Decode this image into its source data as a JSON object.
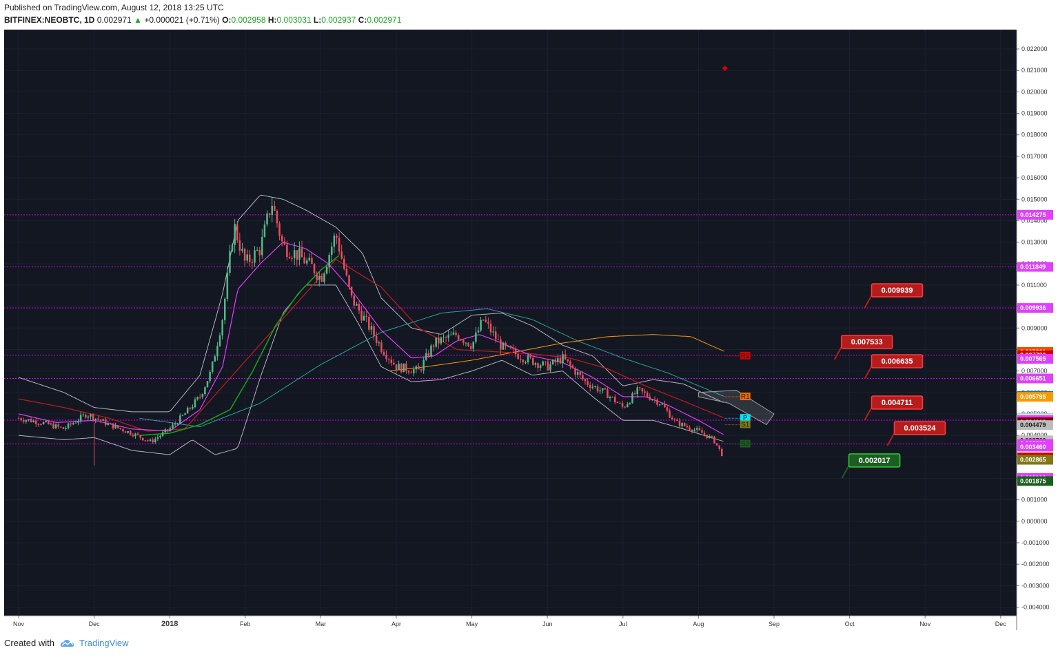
{
  "header": {
    "published": "Published on TradingView.com, August 12, 2018 13:25 UTC",
    "symbol": "BITFINEX:NEOBTC, 1D",
    "last": "0.002971",
    "change": "+0.000021 (+0.71%)",
    "o_label": "O:",
    "o_value": "0.002958",
    "h_label": "H:",
    "h_value": "0.003031",
    "l_label": "L:",
    "l_value": "0.002937",
    "c_label": "C:",
    "c_value": "0.002971"
  },
  "footer": {
    "created_with": "Created with",
    "brand": "TradingView"
  },
  "colors": {
    "background": "#131722",
    "up": "#53b987",
    "down": "#eb4d5c",
    "bollinger": "#b2b5be",
    "ma_fast": "#e040fb",
    "ma_green": "#1b9e1b",
    "ma_red": "#b71c1c",
    "ma_teal": "#26a69a",
    "ma_orange": "#ff9800",
    "level_line": "#d500f9"
  },
  "chart_data": {
    "type": "candlestick",
    "symbol": "BITFINEX:NEOBTC",
    "interval": "1D",
    "x_ticks": [
      "Nov",
      "Dec",
      "2018",
      "Feb",
      "Mar",
      "Apr",
      "May",
      "Jun",
      "Jul",
      "Aug",
      "Sep",
      "Oct",
      "Nov",
      "Dec"
    ],
    "y_ticks": [
      "0.022000",
      "0.021000",
      "0.020000",
      "0.019000",
      "0.018000",
      "0.017000",
      "0.016000",
      "0.015000",
      "0.014000",
      "0.013000",
      "0.012000",
      "0.011000",
      "0.010000",
      "0.009000",
      "0.008000",
      "0.007000",
      "0.006000",
      "0.005000",
      "0.004000",
      "0.003000",
      "0.002000",
      "0.001000",
      "0.000000",
      "-0.001000",
      "-0.002000",
      "-0.003000",
      "-0.004000"
    ],
    "ylim": [
      -0.0044,
      0.0229
    ],
    "horizontal_levels": [
      0.014275,
      0.011849,
      0.009936,
      0.007736,
      0.006651,
      0.004711,
      0.003601
    ],
    "price_tags": [
      {
        "value": 0.014275,
        "label": "0.014275",
        "color": "#e040fb"
      },
      {
        "value": 0.011849,
        "label": "0.011849",
        "color": "#e040fb"
      },
      {
        "value": 0.009936,
        "label": "0.009936",
        "color": "#e040fb"
      },
      {
        "value": 0.007891,
        "label": "0.007891",
        "color": "#e65100"
      },
      {
        "value": 0.007736,
        "label": "0.007736",
        "color": "#d50000"
      },
      {
        "value": 0.007565,
        "label": "0.007565",
        "color": "#e040fb"
      },
      {
        "value": 0.006651,
        "label": "0.006651",
        "color": "#e040fb"
      },
      {
        "value": 0.005836,
        "label": "0.005836",
        "color": "#00838f"
      },
      {
        "value": 0.005795,
        "label": "0.005795",
        "color": "#ff9800"
      },
      {
        "value": 0.004806,
        "label": "0.004806",
        "color": "#00e5ff"
      },
      {
        "value": 0.004792,
        "label": "0.004792",
        "color": "#e0e0e0"
      },
      {
        "value": 0.004711,
        "label": "0.004711",
        "color": "#e040fb"
      },
      {
        "value": 0.00461,
        "label": "0.004610",
        "color": "#7f0000"
      },
      {
        "value": 0.004479,
        "label": "0.004479",
        "color": "#bdbdbd"
      },
      {
        "value": 0.003769,
        "label": "0.003769",
        "color": "#bdbdbd"
      },
      {
        "value": 0.003601,
        "label": "0.003601",
        "color": "#e040fb"
      },
      {
        "value": 0.00346,
        "label": "0.003460",
        "color": "#e040fb"
      },
      {
        "value": 0.003032,
        "label": "0.003032",
        "color": "#e0e0e0"
      },
      {
        "value": 0.002971,
        "label": "0.002971",
        "color": "#d50000"
      },
      {
        "value": 0.002865,
        "label": "0.002865",
        "color": "#827717"
      },
      {
        "value": 0.002016,
        "label": "0.002016",
        "color": "#e040fb"
      },
      {
        "value": 0.001875,
        "label": "0.001875",
        "color": "#1b5e20"
      }
    ],
    "callouts": [
      {
        "label": "0.009939",
        "value": 0.009939,
        "month_index": 11.2,
        "color": "#b71c1c"
      },
      {
        "label": "0.007533",
        "value": 0.007533,
        "month_index": 10.8,
        "color": "#b71c1c"
      },
      {
        "label": "0.006635",
        "value": 0.006635,
        "month_index": 11.2,
        "color": "#b71c1c"
      },
      {
        "label": "0.004711",
        "value": 0.004711,
        "month_index": 11.2,
        "color": "#b71c1c"
      },
      {
        "label": "0.003524",
        "value": 0.003524,
        "month_index": 11.5,
        "color": "#b71c1c"
      },
      {
        "label": "0.002017",
        "value": 0.002017,
        "month_index": 10.9,
        "color": "#1b5e20"
      }
    ],
    "pivots": [
      {
        "label": "R2",
        "value": 0.0077,
        "color": "#d50000"
      },
      {
        "label": "R1",
        "value": 0.0058,
        "color": "#ef6c00"
      },
      {
        "label": "P",
        "value": 0.0048,
        "color": "#00e5ff"
      },
      {
        "label": "S1",
        "value": 0.0045,
        "color": "#827717"
      },
      {
        "label": "S2",
        "value": 0.0036,
        "color": "#1b5e20"
      }
    ],
    "marker": {
      "value": 0.0211,
      "month_index": 9.35,
      "color": "#d50000"
    },
    "price_path": [
      {
        "m": 0.0,
        "v": 0.0048
      },
      {
        "m": 0.3,
        "v": 0.0046
      },
      {
        "m": 0.6,
        "v": 0.0043
      },
      {
        "m": 0.9,
        "v": 0.005
      },
      {
        "m": 1.2,
        "v": 0.0045
      },
      {
        "m": 1.5,
        "v": 0.0041
      },
      {
        "m": 1.75,
        "v": 0.0037
      },
      {
        "m": 2.0,
        "v": 0.0043
      },
      {
        "m": 2.2,
        "v": 0.005
      },
      {
        "m": 2.4,
        "v": 0.0058
      },
      {
        "m": 2.55,
        "v": 0.007
      },
      {
        "m": 2.7,
        "v": 0.0095
      },
      {
        "m": 2.85,
        "v": 0.0138
      },
      {
        "m": 3.0,
        "v": 0.012
      },
      {
        "m": 3.2,
        "v": 0.0127
      },
      {
        "m": 3.35,
        "v": 0.0149
      },
      {
        "m": 3.5,
        "v": 0.0128
      },
      {
        "m": 3.7,
        "v": 0.0124
      },
      {
        "m": 3.9,
        "v": 0.0118
      },
      {
        "m": 4.0,
        "v": 0.0113
      },
      {
        "m": 4.2,
        "v": 0.0134
      },
      {
        "m": 4.4,
        "v": 0.0104
      },
      {
        "m": 4.6,
        "v": 0.0093
      },
      {
        "m": 4.8,
        "v": 0.0081
      },
      {
        "m": 5.0,
        "v": 0.0072
      },
      {
        "m": 5.3,
        "v": 0.007
      },
      {
        "m": 5.5,
        "v": 0.0083
      },
      {
        "m": 5.8,
        "v": 0.0087
      },
      {
        "m": 6.0,
        "v": 0.0082
      },
      {
        "m": 6.15,
        "v": 0.0094
      },
      {
        "m": 6.4,
        "v": 0.0081
      },
      {
        "m": 6.7,
        "v": 0.0076
      },
      {
        "m": 7.0,
        "v": 0.0072
      },
      {
        "m": 7.2,
        "v": 0.0076
      },
      {
        "m": 7.5,
        "v": 0.0065
      },
      {
        "m": 7.8,
        "v": 0.0059
      },
      {
        "m": 8.0,
        "v": 0.0053
      },
      {
        "m": 8.2,
        "v": 0.0061
      },
      {
        "m": 8.5,
        "v": 0.0055
      },
      {
        "m": 8.7,
        "v": 0.0046
      },
      {
        "m": 9.0,
        "v": 0.0042
      },
      {
        "m": 9.2,
        "v": 0.0038
      },
      {
        "m": 9.33,
        "v": 0.003
      }
    ],
    "ma_fast": [
      {
        "m": 0.0,
        "v": 0.005
      },
      {
        "m": 0.5,
        "v": 0.0046
      },
      {
        "m": 1.0,
        "v": 0.0047
      },
      {
        "m": 1.5,
        "v": 0.0043
      },
      {
        "m": 2.0,
        "v": 0.0042
      },
      {
        "m": 2.4,
        "v": 0.0052
      },
      {
        "m": 2.7,
        "v": 0.0072
      },
      {
        "m": 2.9,
        "v": 0.0108
      },
      {
        "m": 3.2,
        "v": 0.012
      },
      {
        "m": 3.5,
        "v": 0.013
      },
      {
        "m": 3.8,
        "v": 0.0127
      },
      {
        "m": 4.1,
        "v": 0.012
      },
      {
        "m": 4.4,
        "v": 0.0108
      },
      {
        "m": 4.8,
        "v": 0.0089
      },
      {
        "m": 5.2,
        "v": 0.0076
      },
      {
        "m": 5.5,
        "v": 0.0077
      },
      {
        "m": 5.8,
        "v": 0.0084
      },
      {
        "m": 6.1,
        "v": 0.0087
      },
      {
        "m": 6.4,
        "v": 0.0083
      },
      {
        "m": 6.8,
        "v": 0.0077
      },
      {
        "m": 7.2,
        "v": 0.0074
      },
      {
        "m": 7.6,
        "v": 0.0067
      },
      {
        "m": 8.0,
        "v": 0.0058
      },
      {
        "m": 8.3,
        "v": 0.0058
      },
      {
        "m": 8.6,
        "v": 0.0054
      },
      {
        "m": 9.0,
        "v": 0.0047
      },
      {
        "m": 9.35,
        "v": 0.004
      }
    ],
    "ma_green": [
      {
        "m": 1.6,
        "v": 0.004
      },
      {
        "m": 2.0,
        "v": 0.0041
      },
      {
        "m": 2.4,
        "v": 0.0045
      },
      {
        "m": 2.8,
        "v": 0.0052
      },
      {
        "m": 3.1,
        "v": 0.007
      },
      {
        "m": 3.4,
        "v": 0.0091
      },
      {
        "m": 3.7,
        "v": 0.0106
      },
      {
        "m": 4.0,
        "v": 0.0117
      },
      {
        "m": 4.25,
        "v": 0.0124
      }
    ],
    "ma_red": [
      {
        "m": 0.0,
        "v": 0.0057
      },
      {
        "m": 0.6,
        "v": 0.0053
      },
      {
        "m": 1.2,
        "v": 0.0048
      },
      {
        "m": 1.7,
        "v": 0.0042
      },
      {
        "m": 2.2,
        "v": 0.0043
      },
      {
        "m": 4.2,
        "v": 0.0122
      },
      {
        "m": 4.8,
        "v": 0.0109
      },
      {
        "m": 5.3,
        "v": 0.009
      },
      {
        "m": 5.8,
        "v": 0.008
      },
      {
        "m": 6.3,
        "v": 0.0079
      },
      {
        "m": 6.8,
        "v": 0.0078
      },
      {
        "m": 7.3,
        "v": 0.0076
      },
      {
        "m": 7.8,
        "v": 0.0071
      },
      {
        "m": 8.3,
        "v": 0.0063
      },
      {
        "m": 8.8,
        "v": 0.0056
      },
      {
        "m": 9.35,
        "v": 0.0048
      }
    ],
    "ma_teal": [
      {
        "m": 1.6,
        "v": 0.0048
      },
      {
        "m": 2.4,
        "v": 0.0044
      },
      {
        "m": 3.2,
        "v": 0.0055
      },
      {
        "m": 4.0,
        "v": 0.0073
      },
      {
        "m": 4.8,
        "v": 0.0088
      },
      {
        "m": 5.6,
        "v": 0.0097
      },
      {
        "m": 6.2,
        "v": 0.0099
      },
      {
        "m": 6.8,
        "v": 0.0094
      },
      {
        "m": 7.4,
        "v": 0.0084
      },
      {
        "m": 8.0,
        "v": 0.0076
      },
      {
        "m": 8.6,
        "v": 0.0069
      },
      {
        "m": 9.35,
        "v": 0.0058
      }
    ],
    "ma_orange": [
      {
        "m": 4.9,
        "v": 0.007
      },
      {
        "m": 5.4,
        "v": 0.0072
      },
      {
        "m": 6.0,
        "v": 0.0075
      },
      {
        "m": 6.6,
        "v": 0.0079
      },
      {
        "m": 7.2,
        "v": 0.0083
      },
      {
        "m": 7.8,
        "v": 0.0086
      },
      {
        "m": 8.4,
        "v": 0.0087
      },
      {
        "m": 8.9,
        "v": 0.0086
      },
      {
        "m": 9.35,
        "v": 0.0079
      }
    ],
    "bb_upper": [
      {
        "m": 0.0,
        "v": 0.0067
      },
      {
        "m": 0.6,
        "v": 0.006
      },
      {
        "m": 1.0,
        "v": 0.0053
      },
      {
        "m": 1.5,
        "v": 0.0051
      },
      {
        "m": 2.0,
        "v": 0.0051
      },
      {
        "m": 2.4,
        "v": 0.0068
      },
      {
        "m": 2.7,
        "v": 0.0106
      },
      {
        "m": 2.9,
        "v": 0.014
      },
      {
        "m": 3.2,
        "v": 0.0152
      },
      {
        "m": 3.5,
        "v": 0.015
      },
      {
        "m": 3.8,
        "v": 0.0145
      },
      {
        "m": 4.2,
        "v": 0.0137
      },
      {
        "m": 4.55,
        "v": 0.0125
      },
      {
        "m": 4.8,
        "v": 0.0104
      },
      {
        "m": 5.2,
        "v": 0.009
      },
      {
        "m": 5.6,
        "v": 0.0087
      },
      {
        "m": 6.0,
        "v": 0.0096
      },
      {
        "m": 6.4,
        "v": 0.0097
      },
      {
        "m": 6.8,
        "v": 0.0091
      },
      {
        "m": 7.2,
        "v": 0.0082
      },
      {
        "m": 7.6,
        "v": 0.0077
      },
      {
        "m": 8.0,
        "v": 0.0063
      },
      {
        "m": 8.4,
        "v": 0.0066
      },
      {
        "m": 8.8,
        "v": 0.0064
      },
      {
        "m": 9.35,
        "v": 0.0055
      }
    ],
    "bb_lower": [
      {
        "m": 0.0,
        "v": 0.004
      },
      {
        "m": 0.6,
        "v": 0.0038
      },
      {
        "m": 1.0,
        "v": 0.0039
      },
      {
        "m": 1.5,
        "v": 0.0033
      },
      {
        "m": 2.0,
        "v": 0.0031
      },
      {
        "m": 2.3,
        "v": 0.0038
      },
      {
        "m": 2.6,
        "v": 0.0031
      },
      {
        "m": 2.9,
        "v": 0.0034
      },
      {
        "m": 3.2,
        "v": 0.0067
      },
      {
        "m": 3.5,
        "v": 0.0097
      },
      {
        "m": 3.8,
        "v": 0.011
      },
      {
        "m": 4.2,
        "v": 0.011
      },
      {
        "m": 4.5,
        "v": 0.0092
      },
      {
        "m": 4.8,
        "v": 0.0072
      },
      {
        "m": 5.2,
        "v": 0.0065
      },
      {
        "m": 5.6,
        "v": 0.0066
      },
      {
        "m": 6.0,
        "v": 0.007
      },
      {
        "m": 6.4,
        "v": 0.0075
      },
      {
        "m": 6.8,
        "v": 0.0068
      },
      {
        "m": 7.2,
        "v": 0.007
      },
      {
        "m": 7.6,
        "v": 0.0058
      },
      {
        "m": 8.0,
        "v": 0.0047
      },
      {
        "m": 8.4,
        "v": 0.0047
      },
      {
        "m": 8.8,
        "v": 0.0043
      },
      {
        "m": 9.35,
        "v": 0.0037
      }
    ]
  }
}
